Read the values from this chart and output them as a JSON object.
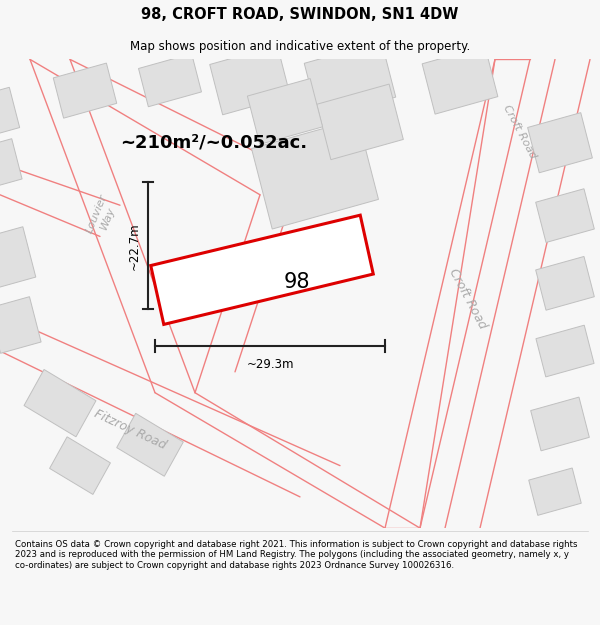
{
  "title": "98, CROFT ROAD, SWINDON, SN1 4DW",
  "subtitle": "Map shows position and indicative extent of the property.",
  "footer": "Contains OS data © Crown copyright and database right 2021. This information is subject to Crown copyright and database rights 2023 and is reproduced with the permission of HM Land Registry. The polygons (including the associated geometry, namely x, y co-ordinates) are subject to Crown copyright and database rights 2023 Ordnance Survey 100026316.",
  "area_text": "~210m²/~0.052ac.",
  "width_label": "~29.3m",
  "height_label": "~22.7m",
  "property_number": "98",
  "bg_color": "#f7f7f7",
  "map_bg": "#ffffff",
  "building_fill": "#e0e0e0",
  "building_edge": "#c0c0c0",
  "red_line": "#dd0000",
  "pink_road": "#f08080",
  "dim_line": "#222222",
  "road_label_color": "#aaaaaa"
}
